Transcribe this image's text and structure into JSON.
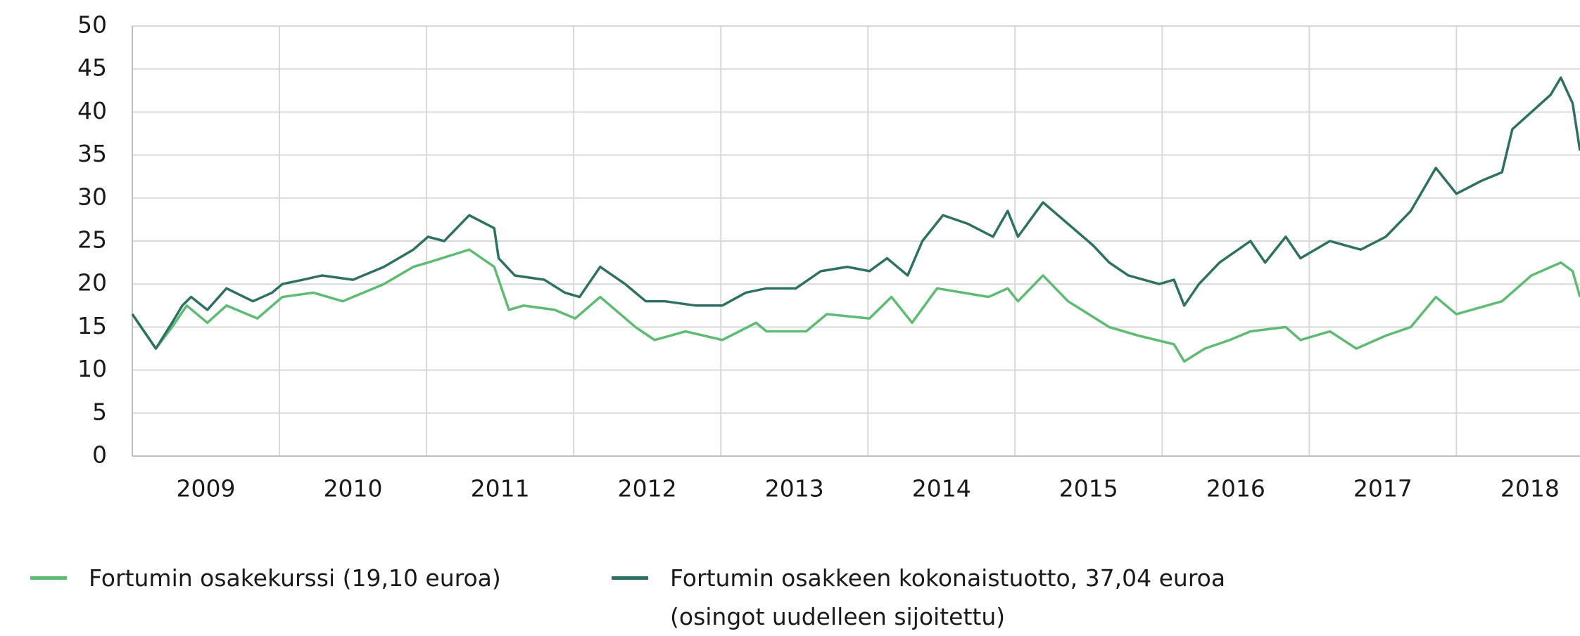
{
  "chart_data": {
    "type": "line",
    "xlim": [
      2009,
      2018.84
    ],
    "ylim": [
      0,
      50
    ],
    "yticks": [
      0,
      5,
      10,
      15,
      20,
      25,
      30,
      35,
      40,
      45,
      50
    ],
    "xticks": [
      {
        "value": 2009.5,
        "label": "2009"
      },
      {
        "value": 2010.5,
        "label": "2010"
      },
      {
        "value": 2011.5,
        "label": "2011"
      },
      {
        "value": 2012.5,
        "label": "2012"
      },
      {
        "value": 2013.5,
        "label": "2013"
      },
      {
        "value": 2014.5,
        "label": "2014"
      },
      {
        "value": 2015.5,
        "label": "2015"
      },
      {
        "value": 2016.5,
        "label": "2016"
      },
      {
        "value": 2017.5,
        "label": "2017"
      },
      {
        "value": 2018.5,
        "label": "2018"
      }
    ],
    "xgrid": [
      2010,
      2011,
      2012,
      2013,
      2014,
      2015,
      2016,
      2017,
      2018
    ],
    "grid": true,
    "legend": "bottom",
    "series": [
      {
        "name": "Fortumin osakekurssi (19,10 euroa)",
        "color": "#5dbb73",
        "x": [
          2009.0,
          2009.16,
          2009.27,
          2009.37,
          2009.51,
          2009.64,
          2009.85,
          2010.02,
          2010.23,
          2010.43,
          2010.71,
          2010.91,
          2011.01,
          2011.29,
          2011.46,
          2011.56,
          2011.66,
          2011.87,
          2012.01,
          2012.18,
          2012.42,
          2012.55,
          2012.76,
          2013.01,
          2013.24,
          2013.31,
          2013.58,
          2013.72,
          2014.01,
          2014.16,
          2014.3,
          2014.47,
          2014.82,
          2014.95,
          2015.02,
          2015.19,
          2015.36,
          2015.64,
          2015.84,
          2016.08,
          2016.15,
          2016.29,
          2016.46,
          2016.6,
          2016.84,
          2016.94,
          2017.14,
          2017.32,
          2017.52,
          2017.69,
          2017.86,
          2018.0,
          2018.31,
          2018.51,
          2018.71,
          2018.79,
          2018.84
        ],
        "values": [
          16.5,
          12.5,
          15,
          17.5,
          15.5,
          17.5,
          16,
          18.5,
          19,
          18,
          20,
          22,
          22.5,
          24,
          22,
          17,
          17.5,
          17,
          16,
          18.5,
          15,
          13.5,
          14.5,
          13.5,
          15.5,
          14.5,
          14.5,
          16.5,
          16,
          18.5,
          15.5,
          19.5,
          18.5,
          19.5,
          18,
          21,
          18,
          15,
          14,
          13,
          11,
          12.5,
          13.5,
          14.5,
          15,
          13.5,
          14.5,
          12.5,
          14,
          15,
          18.5,
          16.5,
          18,
          21,
          22.5,
          21.5,
          18.5
        ]
      },
      {
        "name": "Fortumin osakkeen kokonaistuotto, 37,04 euroa (osingot uudelleen sijoitettu)",
        "color": "#2e7062",
        "x": [
          2009.0,
          2009.16,
          2009.27,
          2009.34,
          2009.4,
          2009.51,
          2009.64,
          2009.82,
          2009.95,
          2010.02,
          2010.16,
          2010.29,
          2010.5,
          2010.71,
          2010.91,
          2011.01,
          2011.12,
          2011.29,
          2011.46,
          2011.49,
          2011.6,
          2011.8,
          2011.94,
          2012.04,
          2012.18,
          2012.35,
          2012.49,
          2012.62,
          2012.83,
          2013.01,
          2013.17,
          2013.31,
          2013.51,
          2013.68,
          2013.86,
          2014.01,
          2014.13,
          2014.27,
          2014.37,
          2014.51,
          2014.68,
          2014.85,
          2014.95,
          2015.02,
          2015.19,
          2015.36,
          2015.53,
          2015.64,
          2015.77,
          2015.98,
          2016.08,
          2016.15,
          2016.25,
          2016.39,
          2016.6,
          2016.7,
          2016.84,
          2016.94,
          2017.14,
          2017.35,
          2017.52,
          2017.69,
          2017.86,
          2018.0,
          2018.17,
          2018.31,
          2018.38,
          2018.51,
          2018.64,
          2018.71,
          2018.79,
          2018.84
        ],
        "values": [
          16.5,
          12.5,
          15.5,
          17.5,
          18.5,
          17,
          19.5,
          18,
          19,
          20,
          20.5,
          21,
          20.5,
          22,
          24,
          25.5,
          25,
          28,
          26.5,
          23,
          21,
          20.5,
          19,
          18.5,
          22,
          20,
          18,
          18,
          17.5,
          17.5,
          19,
          19.5,
          19.5,
          21.5,
          22,
          21.5,
          23,
          21,
          25,
          28,
          27,
          25.5,
          28.5,
          25.5,
          29.5,
          27,
          24.5,
          22.5,
          21,
          20,
          20.5,
          17.5,
          20,
          22.5,
          25,
          22.5,
          25.5,
          23,
          25,
          24,
          25.5,
          28.5,
          33.5,
          30.5,
          32,
          33,
          38,
          40,
          42,
          44,
          41,
          35.5
        ]
      }
    ]
  }
}
